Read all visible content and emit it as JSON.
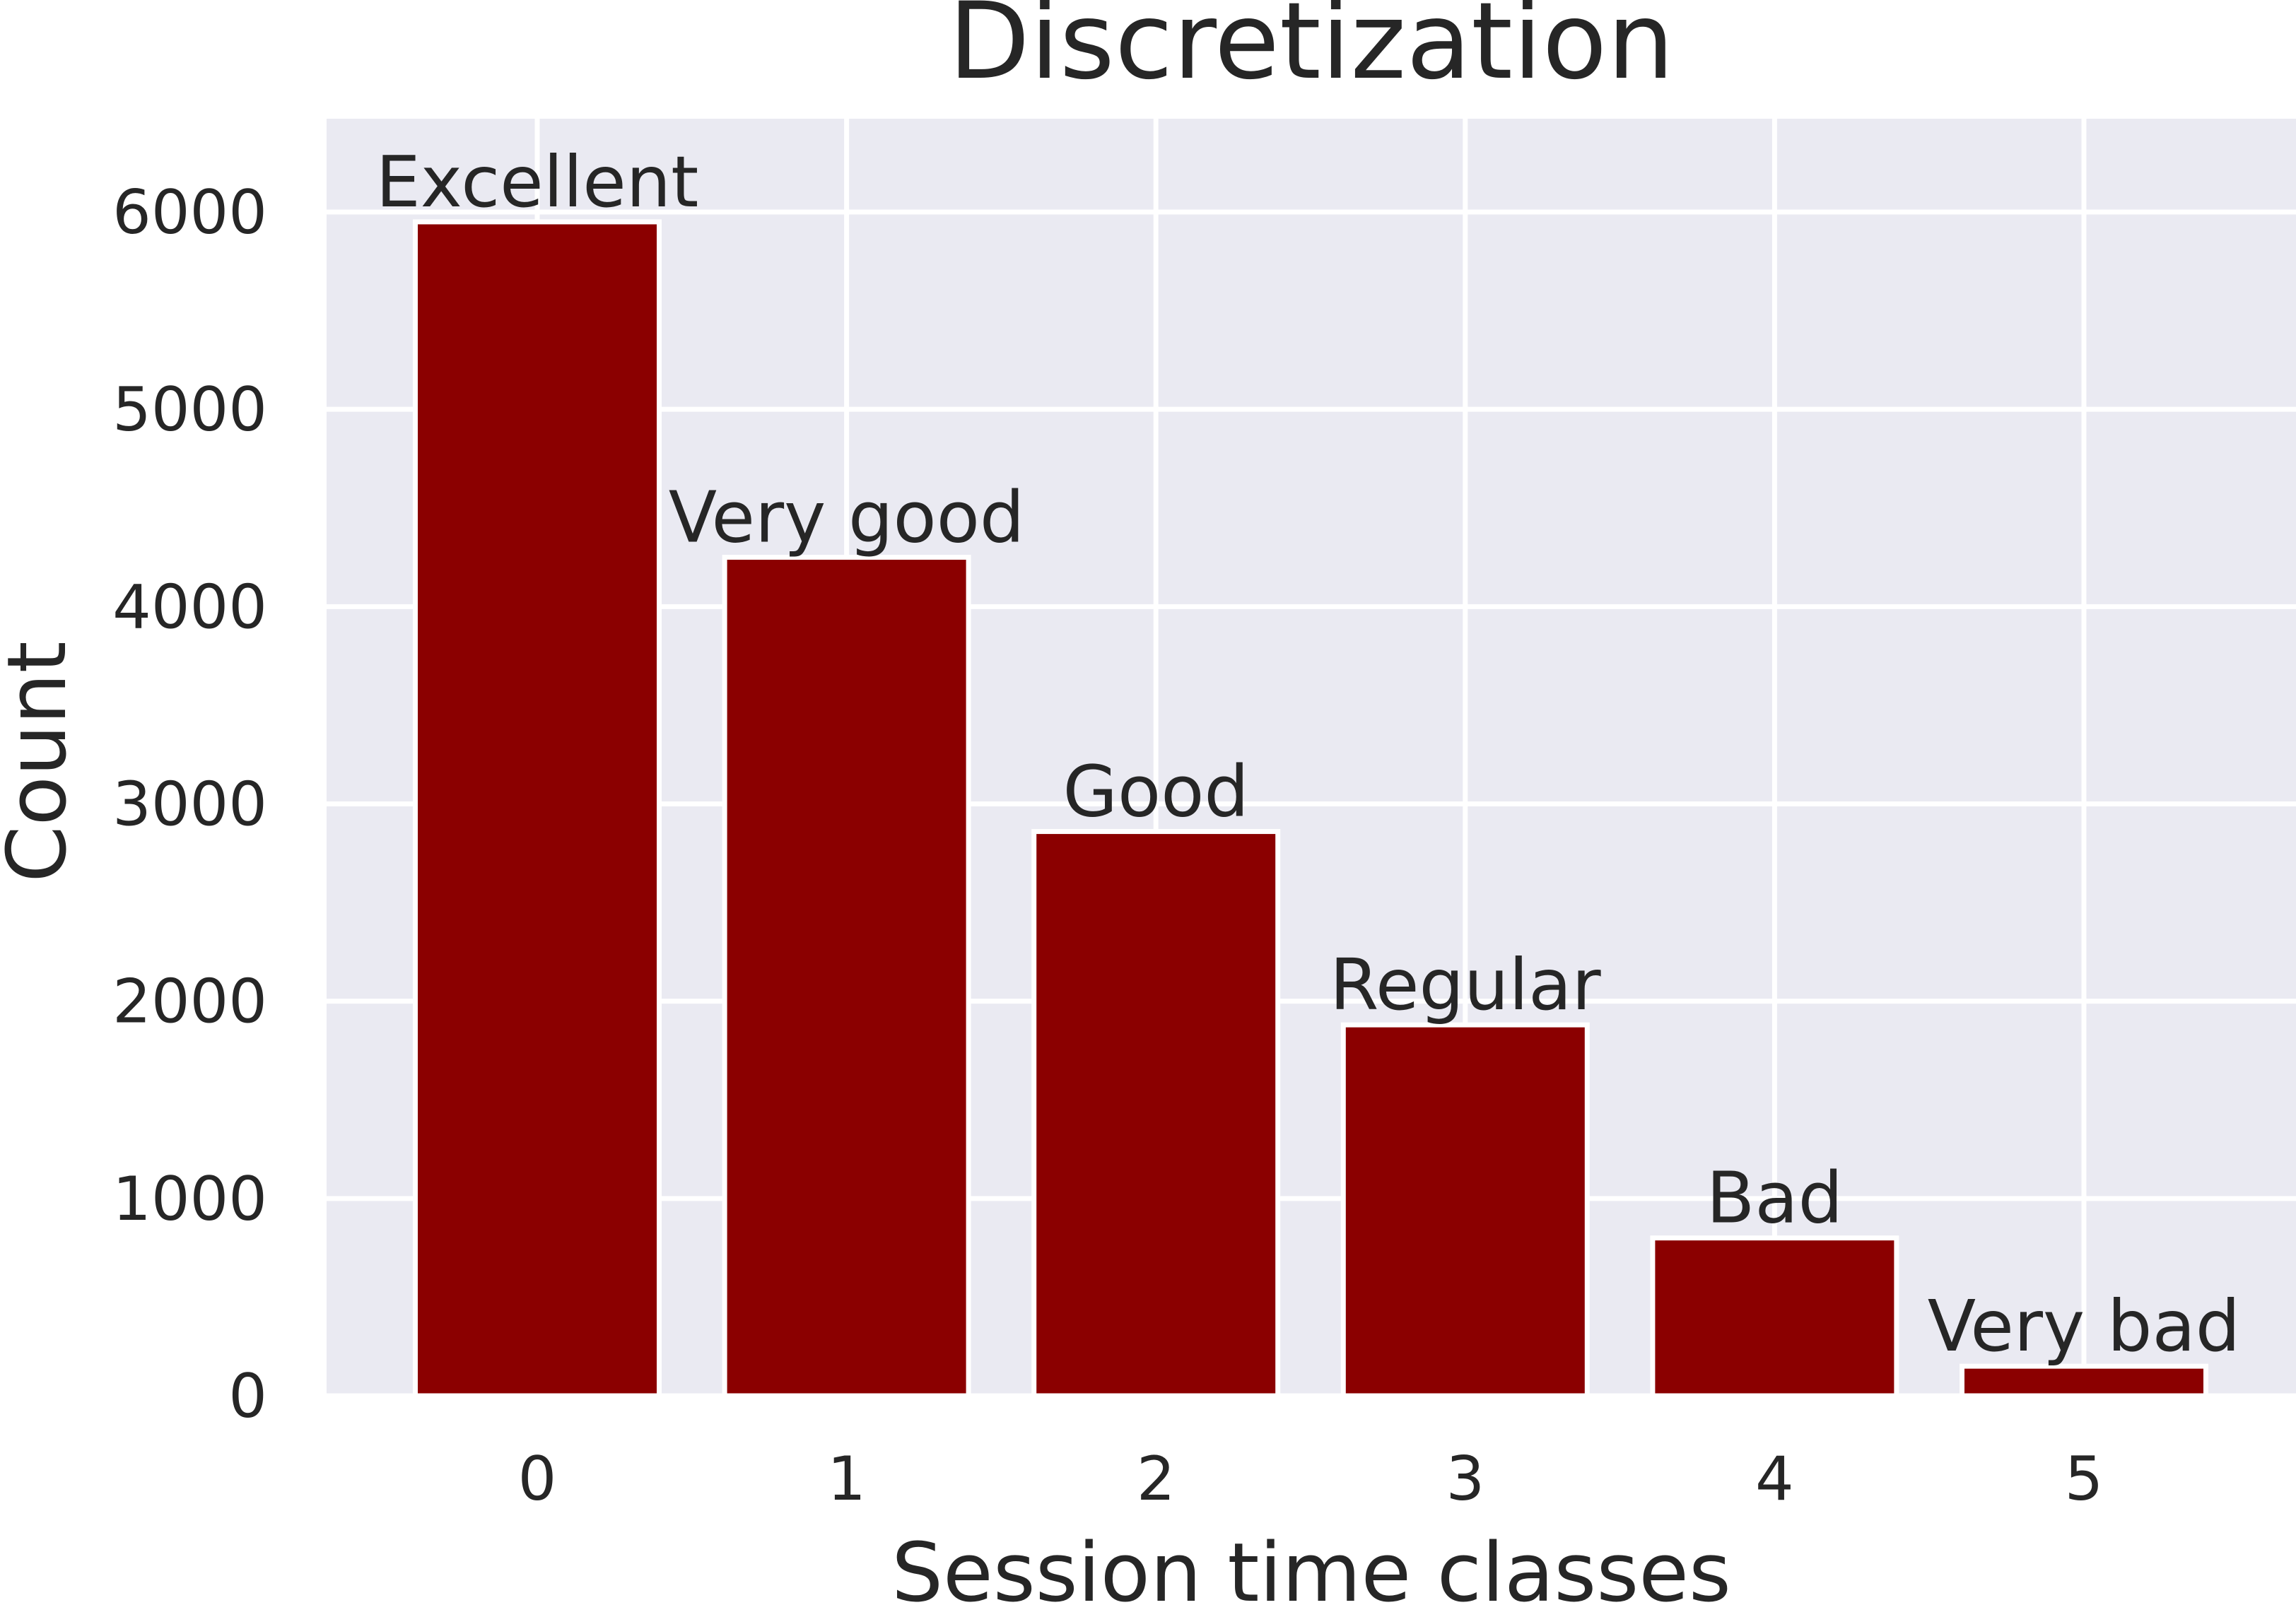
{
  "chart_data": {
    "type": "bar",
    "title": "Discretization",
    "xlabel": "Session time classes",
    "ylabel": "Count",
    "categories": [
      "0",
      "1",
      "2",
      "3",
      "4",
      "5"
    ],
    "values": [
      5950,
      4250,
      2860,
      1880,
      800,
      150
    ],
    "bar_labels": [
      "Excellent",
      "Very good",
      "Good",
      "Regular",
      "Bad",
      "Very bad"
    ],
    "yticks": [
      0,
      1000,
      2000,
      3000,
      4000,
      5000,
      6000
    ],
    "ylim": [
      0,
      6500
    ],
    "grid": true,
    "bar_color": "#8b0000",
    "background_color": "#eaeaf2"
  }
}
